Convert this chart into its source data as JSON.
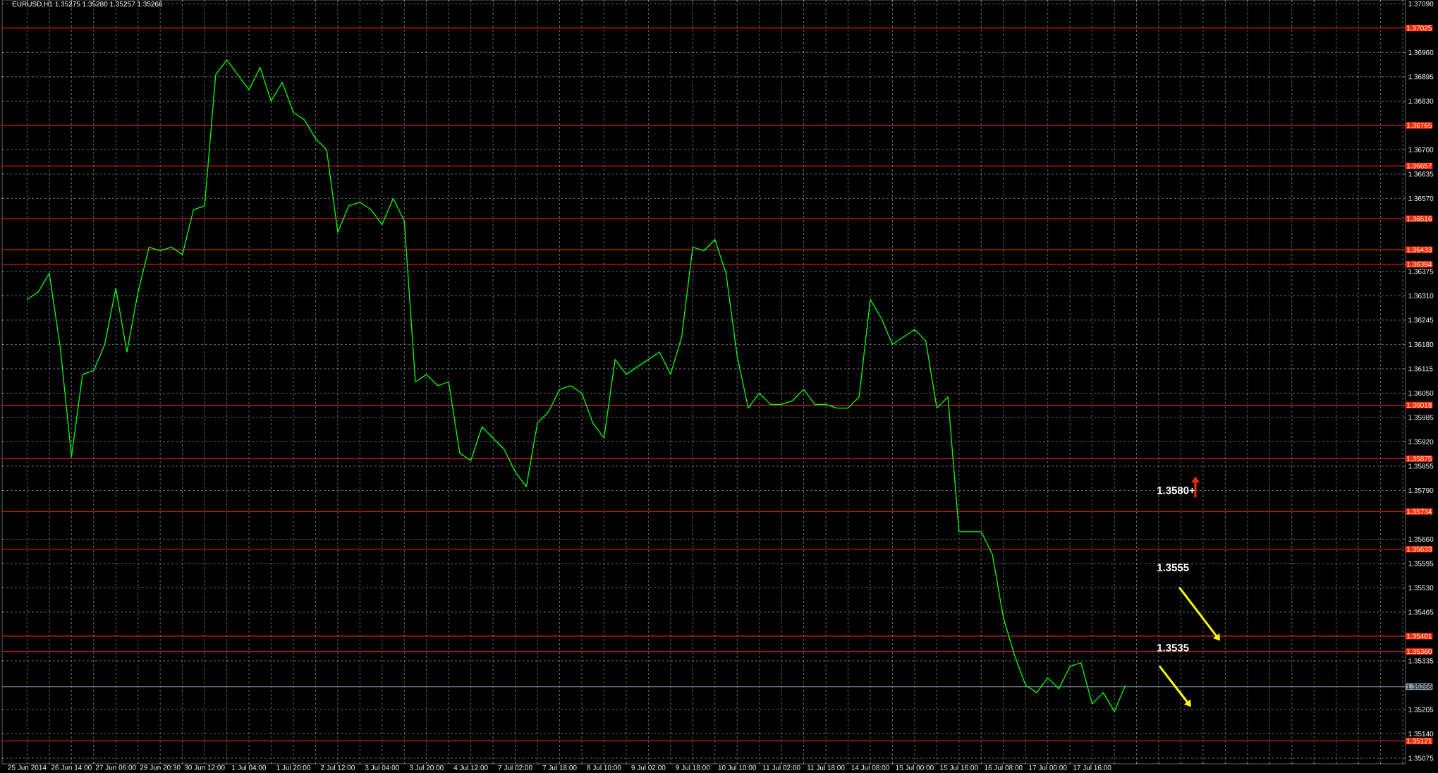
{
  "chart_data": {
    "type": "line",
    "title": "EURUSD,H1  1.35275 1.35280 1.35257 1.35266",
    "categories": [
      "25 Jun 2014",
      null,
      null,
      null,
      "26 Jun 14:00",
      null,
      null,
      null,
      "27 Jun 06:00",
      null,
      null,
      null,
      "29 Jun 20:30",
      null,
      null,
      null,
      "30 Jun 12:00",
      null,
      null,
      null,
      "1 Jul 04:00",
      null,
      null,
      null,
      "1 Jul 20:00",
      null,
      null,
      null,
      "2 Jul 12:00",
      null,
      null,
      null,
      "3 Jul 04:00",
      null,
      null,
      null,
      "3 Jul 20:00",
      null,
      null,
      null,
      "4 Jul 12:00",
      null,
      null,
      null,
      "7 Jul 02:00",
      null,
      null,
      null,
      "7 Jul 18:00",
      null,
      null,
      null,
      "8 Jul 10:00",
      null,
      null,
      null,
      "9 Jul 02:00",
      null,
      null,
      null,
      "9 Jul 18:00",
      null,
      null,
      null,
      "10 Jul 10:00",
      null,
      null,
      null,
      "11 Jul 02:00",
      null,
      null,
      null,
      "11 Jul 18:00",
      null,
      null,
      null,
      "14 Jul 08:00",
      null,
      null,
      null,
      "15 Jul 00:00",
      null,
      null,
      null,
      "15 Jul 16:00",
      null,
      null,
      null,
      "16 Jul 08:00",
      null,
      null,
      null,
      "17 Jul 00:00",
      null,
      null,
      null,
      "17 Jul 16:00",
      null,
      null,
      null,
      null,
      null,
      null,
      null,
      null,
      null,
      null,
      null,
      null,
      null,
      null,
      null,
      null,
      null,
      null,
      null,
      null,
      null,
      null,
      null,
      null,
      null,
      null,
      null,
      null
    ],
    "series": [
      {
        "color": "#00ff00",
        "values": [
          1.363,
          1.3632,
          1.3637,
          1.3617,
          1.3588,
          1.361,
          1.3611,
          1.3618,
          1.3633,
          1.3616,
          1.3632,
          1.3644,
          1.3643,
          1.3644,
          1.3642,
          1.3654,
          1.3655,
          1.369,
          1.3694,
          1.369,
          1.3686,
          1.3692,
          1.3683,
          1.3688,
          1.368,
          1.3678,
          1.3673,
          1.367,
          1.3648,
          1.3655,
          1.3656,
          1.3654,
          1.365,
          1.3657,
          1.3651,
          1.3608,
          1.361,
          1.3607,
          1.3608,
          1.3589,
          1.3587,
          1.3596,
          1.3593,
          1.359,
          1.3584,
          1.358,
          1.3597,
          1.36,
          1.3606,
          1.3607,
          1.3605,
          1.3597,
          1.3593,
          1.3614,
          1.361,
          1.3612,
          1.3614,
          1.3616,
          1.361,
          1.362,
          1.3644,
          1.3643,
          1.3646,
          1.3637,
          1.3615,
          1.3601,
          1.3605,
          1.3602,
          1.3602,
          1.3603,
          1.3606,
          1.3602,
          1.3602,
          1.3601,
          1.3601,
          1.3604,
          1.363,
          1.3625,
          1.3618,
          1.362,
          1.3622,
          1.3619,
          1.3601,
          1.3604,
          1.3568,
          1.3568,
          1.3568,
          1.3562,
          1.3545,
          1.3535,
          1.3527,
          1.3525,
          1.3529,
          1.3526,
          1.3532,
          1.3533,
          1.3522,
          1.3525,
          1.352,
          1.3527,
          null,
          null,
          null,
          null,
          null,
          null,
          null,
          null,
          null,
          null,
          null,
          null,
          null,
          null,
          null,
          null,
          null,
          null,
          null,
          null,
          null,
          null,
          null,
          null,
          null
        ]
      }
    ],
    "ylim": [
      1.3506,
      1.371
    ],
    "yticks": [
      {
        "value": 1.3709,
        "label": "1.37090"
      },
      {
        "value": 1.3696,
        "label": "1.36960"
      },
      {
        "value": 1.36895,
        "label": "1.36895"
      },
      {
        "value": 1.3683,
        "label": "1.36830"
      },
      {
        "value": 1.367,
        "label": "1.36700"
      },
      {
        "value": 1.36635,
        "label": "1.36635"
      },
      {
        "value": 1.3657,
        "label": "1.36570"
      },
      {
        "value": 1.36375,
        "label": "1.36375"
      },
      {
        "value": 1.3631,
        "label": "1.36310"
      },
      {
        "value": 1.36245,
        "label": "1.36245"
      },
      {
        "value": 1.3618,
        "label": "1.36180"
      },
      {
        "value": 1.36115,
        "label": "1.36115"
      },
      {
        "value": 1.3605,
        "label": "1.36050"
      },
      {
        "value": 1.35985,
        "label": "1.35985"
      },
      {
        "value": 1.3592,
        "label": "1.35920"
      },
      {
        "value": 1.35855,
        "label": "1.35855"
      },
      {
        "value": 1.3579,
        "label": "1.35790"
      },
      {
        "value": 1.3566,
        "label": "1.35660"
      },
      {
        "value": 1.35595,
        "label": "1.35595"
      },
      {
        "value": 1.3553,
        "label": "1.35530"
      },
      {
        "value": 1.35465,
        "label": "1.35465"
      },
      {
        "value": 1.35335,
        "label": "1.35335"
      },
      {
        "value": 1.35205,
        "label": "1.35205"
      },
      {
        "value": 1.3514,
        "label": "1.35140"
      },
      {
        "value": 1.35075,
        "label": "1.35075"
      }
    ],
    "grid": true,
    "ref_lines": [
      {
        "axis": "y",
        "value": 1.37025,
        "label": "1.37025",
        "color": "#ff2a00"
      },
      {
        "axis": "y",
        "value": 1.36765,
        "label": "1.36765",
        "color": "#ff2a00"
      },
      {
        "axis": "y",
        "value": 1.36657,
        "label": "1.36657",
        "color": "#ff2a00"
      },
      {
        "axis": "y",
        "value": 1.36516,
        "label": "1.36516",
        "color": "#ff2a00"
      },
      {
        "axis": "y",
        "value": 1.36433,
        "label": "1.36433",
        "color": "#ff2a00"
      },
      {
        "axis": "y",
        "value": 1.36394,
        "label": "1.36394",
        "color": "#ff2a00"
      },
      {
        "axis": "y",
        "value": 1.36018,
        "label": "1.36018",
        "color": "#ff2a00"
      },
      {
        "axis": "y",
        "value": 1.35875,
        "label": "1.35875",
        "color": "#ff2a00"
      },
      {
        "axis": "y",
        "value": 1.35734,
        "label": "1.35734",
        "color": "#ff2a00"
      },
      {
        "axis": "y",
        "value": 1.35633,
        "label": "1.35633",
        "color": "#ff2a00"
      },
      {
        "axis": "y",
        "value": 1.35401,
        "label": "1.35401",
        "color": "#ff2a00"
      },
      {
        "axis": "y",
        "value": 1.3536,
        "label": "1.35360",
        "color": "#ff2a00"
      },
      {
        "axis": "y",
        "value": 1.35266,
        "label": "1.35266",
        "color": "#8c9aa8"
      },
      {
        "axis": "y",
        "value": 1.35121,
        "label": "1.35121",
        "color": "#ff2a00"
      }
    ],
    "annotations": [
      "1.3580+",
      "1.3555",
      "1.3535"
    ]
  }
}
